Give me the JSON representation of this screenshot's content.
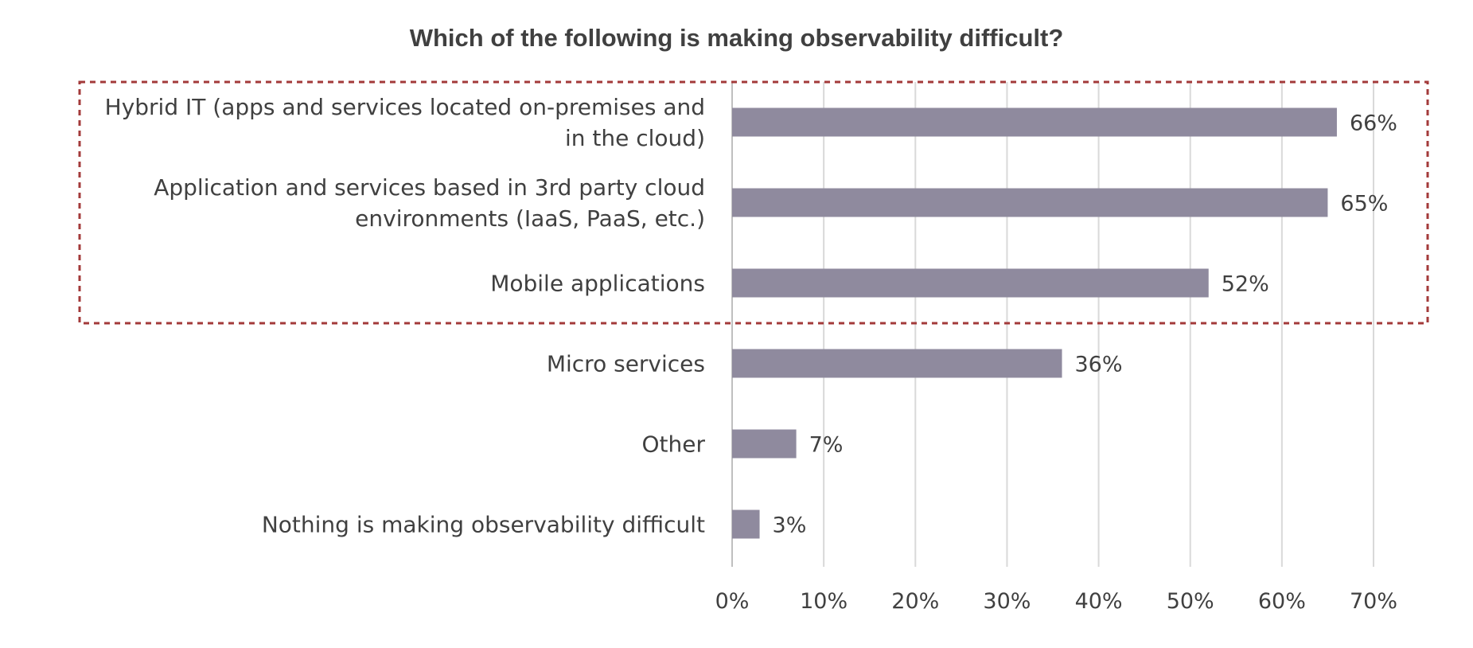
{
  "chart_data": {
    "type": "bar",
    "orientation": "horizontal",
    "title": "Which of the following is making observability difficult?",
    "categories": [
      [
        "Hybrid IT (apps and services located on-premises and",
        "in the cloud)"
      ],
      [
        "Application and services based in 3rd party cloud",
        "environments (IaaS, PaaS, etc.)"
      ],
      [
        "Mobile applications"
      ],
      [
        "Micro services"
      ],
      [
        "Other"
      ],
      [
        "Nothing is making observability difficult"
      ]
    ],
    "values": [
      66,
      65,
      52,
      36,
      7,
      3
    ],
    "value_labels": [
      "66%",
      "65%",
      "52%",
      "36%",
      "7%",
      "3%"
    ],
    "xlim": [
      0,
      70
    ],
    "x_ticks": [
      0,
      10,
      20,
      30,
      40,
      50,
      60,
      70
    ],
    "x_tick_labels": [
      "0%",
      "10%",
      "20%",
      "30%",
      "40%",
      "50%",
      "60%",
      "70%"
    ],
    "grid": "vertical",
    "highlighted_categories": [
      0,
      1,
      2
    ],
    "colors": {
      "bar": "#8f8a9e",
      "grid": "#d9d9d9",
      "text": "#404040",
      "highlight_border": "#a33a3a"
    }
  }
}
